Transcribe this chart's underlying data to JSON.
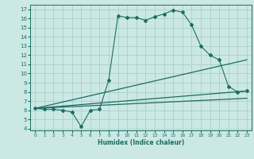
{
  "title": "",
  "xlabel": "Humidex (Indice chaleur)",
  "bg_color": "#cce8e4",
  "grid_color": "#a0ccc6",
  "line_color": "#1a6e62",
  "xlim": [
    -0.5,
    23.5
  ],
  "ylim": [
    3.8,
    17.5
  ],
  "xticks": [
    0,
    1,
    2,
    3,
    4,
    5,
    6,
    7,
    8,
    9,
    10,
    11,
    12,
    13,
    14,
    15,
    16,
    17,
    18,
    19,
    20,
    21,
    22,
    23
  ],
  "yticks": [
    4,
    5,
    6,
    7,
    8,
    9,
    10,
    11,
    12,
    13,
    14,
    15,
    16,
    17
  ],
  "series1_x": [
    0,
    1,
    2,
    3,
    4,
    5,
    6,
    7,
    8,
    9,
    10,
    11,
    12,
    13,
    14,
    15,
    16,
    17,
    18,
    19,
    20,
    21,
    22,
    23
  ],
  "series1_y": [
    6.2,
    6.1,
    6.1,
    6.0,
    5.8,
    4.2,
    6.0,
    6.1,
    9.3,
    16.3,
    16.1,
    16.1,
    15.8,
    16.2,
    16.5,
    16.9,
    16.7,
    15.3,
    13.0,
    12.0,
    11.5,
    8.6,
    8.0,
    8.1
  ],
  "series2_x": [
    0,
    23
  ],
  "series2_y": [
    6.2,
    11.5
  ],
  "series3_x": [
    0,
    23
  ],
  "series3_y": [
    6.2,
    8.1
  ],
  "series4_x": [
    0,
    23
  ],
  "series4_y": [
    6.2,
    7.3
  ]
}
